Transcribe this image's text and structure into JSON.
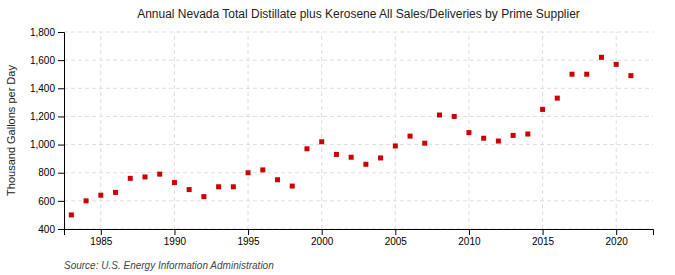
{
  "chart_data": {
    "type": "scatter",
    "title": "Annual Nevada Total Distillate plus Kerosene All Sales/Deliveries by Prime Supplier",
    "ylabel": "Thousand Gallons per Day",
    "source": "Source: U.S. Energy Information Administration",
    "color": "#cc0000",
    "marker": "square",
    "grid": true,
    "x": [
      1983,
      1984,
      1985,
      1986,
      1987,
      1988,
      1989,
      1990,
      1991,
      1992,
      1993,
      1994,
      1995,
      1996,
      1997,
      1998,
      1999,
      2000,
      2001,
      2002,
      2003,
      2004,
      2005,
      2006,
      2007,
      2008,
      2009,
      2010,
      2011,
      2012,
      2013,
      2014,
      2015,
      2016,
      2017,
      2018,
      2019,
      2020,
      2021
    ],
    "values": [
      500,
      600,
      640,
      660,
      760,
      770,
      790,
      730,
      680,
      630,
      700,
      700,
      800,
      820,
      750,
      705,
      970,
      1020,
      930,
      910,
      860,
      905,
      990,
      1060,
      1010,
      1210,
      1200,
      1085,
      1045,
      1025,
      1065,
      1075,
      1250,
      1330,
      1500,
      1500,
      1620,
      1570,
      1490
    ],
    "xlim": [
      1982.5,
      2022.5
    ],
    "xticks": [
      1985,
      1990,
      1995,
      2000,
      2005,
      2010,
      2015,
      2020
    ],
    "ylim": [
      400,
      1800
    ],
    "yticks": [
      400,
      600,
      800,
      {
        "value": 1000,
        "label": "1,000"
      },
      {
        "value": 1200,
        "label": "1,200"
      },
      {
        "value": 1400,
        "label": "1,400"
      },
      {
        "value": 1600,
        "label": "1,600"
      },
      {
        "value": 1800,
        "label": "1,800"
      }
    ]
  }
}
